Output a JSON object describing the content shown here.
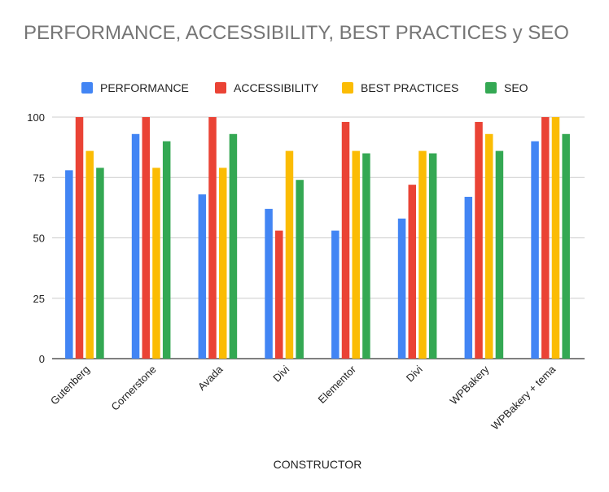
{
  "chart_data": {
    "type": "bar",
    "title": "PERFORMANCE, ACCESSIBILITY, BEST PRACTICES y SEO",
    "xlabel": "CONSTRUCTOR",
    "ylabel": "",
    "ylim": [
      0,
      100
    ],
    "yticks": [
      0,
      25,
      50,
      75,
      100
    ],
    "grid": true,
    "legend_position": "top",
    "categories": [
      "Gutenberg",
      "Cornerstone",
      "Avada",
      "Divi",
      "Elementor",
      "Divi",
      "WPBakery",
      "WPBakery + tema"
    ],
    "series": [
      {
        "name": "PERFORMANCE",
        "color": "#4285f4",
        "values": [
          78,
          93,
          68,
          62,
          53,
          58,
          67,
          90
        ]
      },
      {
        "name": "ACCESSIBILITY",
        "color": "#ea4335",
        "values": [
          100,
          100,
          100,
          53,
          98,
          72,
          98,
          100
        ]
      },
      {
        "name": "BEST PRACTICES",
        "color": "#fbbc04",
        "values": [
          86,
          79,
          79,
          86,
          86,
          86,
          93,
          100
        ]
      },
      {
        "name": "SEO",
        "color": "#34a853",
        "values": [
          79,
          90,
          93,
          74,
          85,
          85,
          86,
          93
        ]
      }
    ]
  }
}
